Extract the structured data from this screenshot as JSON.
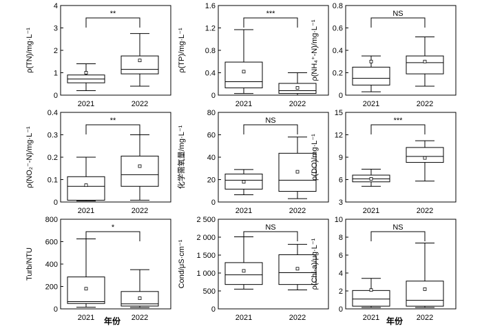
{
  "figure": {
    "x_title": "年份"
  },
  "chart_data": [
    {
      "type": "box",
      "ylabel": "ρ(TN)/mg·L⁻¹",
      "ylim": [
        0,
        4
      ],
      "yticks": [
        {
          "v": 0,
          "t": "0"
        },
        {
          "v": 1,
          "t": "1"
        },
        {
          "v": 2,
          "t": "2"
        },
        {
          "v": 3,
          "t": "3"
        },
        {
          "v": 4,
          "t": "4"
        }
      ],
      "categories": [
        "2021",
        "2022"
      ],
      "significance": "**",
      "boxes": [
        {
          "min": 0.2,
          "q1": 0.55,
          "median": 0.72,
          "q3": 0.9,
          "max": 1.4,
          "mean": 1.0
        },
        {
          "min": 0.4,
          "q1": 0.95,
          "median": 1.15,
          "q3": 1.75,
          "max": 2.75,
          "mean": 1.55
        }
      ]
    },
    {
      "type": "box",
      "ylabel": "ρ(TP)/mg·L⁻¹",
      "ylim": [
        0,
        1.6
      ],
      "yticks": [
        {
          "v": 0,
          "t": "0"
        },
        {
          "v": 0.4,
          "t": "0.4"
        },
        {
          "v": 0.8,
          "t": "0.8"
        },
        {
          "v": 1.2,
          "t": "1.2"
        },
        {
          "v": 1.6,
          "t": "1.6"
        }
      ],
      "categories": [
        "2021",
        "2022"
      ],
      "significance": "***",
      "boxes": [
        {
          "min": 0.03,
          "q1": 0.13,
          "median": 0.24,
          "q3": 0.59,
          "max": 1.17,
          "mean": 0.42
        },
        {
          "min": 0.0,
          "q1": 0.03,
          "median": 0.08,
          "q3": 0.21,
          "max": 0.4,
          "mean": 0.13
        }
      ]
    },
    {
      "type": "box",
      "ylabel": "ρ(NH₄⁺-N)/mg·L⁻¹",
      "ylim": [
        0,
        0.8
      ],
      "yticks": [
        {
          "v": 0,
          "t": "0"
        },
        {
          "v": 0.2,
          "t": "0.2"
        },
        {
          "v": 0.4,
          "t": "0.4"
        },
        {
          "v": 0.6,
          "t": "0.6"
        },
        {
          "v": 0.8,
          "t": "0.8"
        }
      ],
      "categories": [
        "2021",
        "2022"
      ],
      "significance": "NS",
      "boxes": [
        {
          "min": 0.03,
          "q1": 0.09,
          "median": 0.15,
          "q3": 0.25,
          "max": 0.35,
          "mean": 0.3
        },
        {
          "min": 0.08,
          "q1": 0.19,
          "median": 0.29,
          "q3": 0.35,
          "max": 0.52,
          "mean": 0.3
        }
      ]
    },
    {
      "type": "box",
      "ylabel": "ρ(NO₂⁻-N)/mg·L⁻¹",
      "ylim": [
        0,
        0.4
      ],
      "yticks": [
        {
          "v": 0,
          "t": "0"
        },
        {
          "v": 0.1,
          "t": "0.1"
        },
        {
          "v": 0.2,
          "t": "0.2"
        },
        {
          "v": 0.3,
          "t": "0.3"
        },
        {
          "v": 0.4,
          "t": "0.4"
        }
      ],
      "categories": [
        "2021",
        "2022"
      ],
      "significance": "**",
      "boxes": [
        {
          "min": 0.005,
          "q1": 0.008,
          "median": 0.07,
          "q3": 0.113,
          "max": 0.2,
          "mean": 0.075
        },
        {
          "min": 0.008,
          "q1": 0.07,
          "median": 0.122,
          "q3": 0.205,
          "max": 0.3,
          "mean": 0.16
        }
      ]
    },
    {
      "type": "box",
      "ylabel": "化学需氧量/mg·L⁻¹",
      "ylim": [
        0,
        80
      ],
      "yticks": [
        {
          "v": 0,
          "t": "0"
        },
        {
          "v": 20,
          "t": "20"
        },
        {
          "v": 40,
          "t": "40"
        },
        {
          "v": 60,
          "t": "60"
        },
        {
          "v": 80,
          "t": "80"
        }
      ],
      "categories": [
        "2021",
        "2022"
      ],
      "significance": "NS",
      "boxes": [
        {
          "min": 6.5,
          "q1": 11.5,
          "median": 19.5,
          "q3": 25,
          "max": 29,
          "mean": 18
        },
        {
          "min": 3,
          "q1": 9.5,
          "median": 19.5,
          "q3": 43.5,
          "max": 58,
          "mean": 27
        }
      ]
    },
    {
      "type": "box",
      "ylabel": "ρ(DO)/mg·L⁻¹",
      "ylim": [
        3,
        15
      ],
      "yticks": [
        {
          "v": 3,
          "t": "3"
        },
        {
          "v": 6,
          "t": "6"
        },
        {
          "v": 9,
          "t": "9"
        },
        {
          "v": 12,
          "t": "12"
        },
        {
          "v": 15,
          "t": "15"
        }
      ],
      "categories": [
        "2021",
        "2022"
      ],
      "significance": "***",
      "boxes": [
        {
          "min": 5.1,
          "q1": 5.7,
          "median": 6.1,
          "q3": 6.6,
          "max": 7.4,
          "mean": 6.1
        },
        {
          "min": 5.8,
          "q1": 8.3,
          "median": 9.1,
          "q3": 10.3,
          "max": 11.2,
          "mean": 8.9
        }
      ]
    },
    {
      "type": "box",
      "ylabel": "Turb/NTU",
      "ylim": [
        0,
        800
      ],
      "yticks": [
        {
          "v": 0,
          "t": "0"
        },
        {
          "v": 200,
          "t": "200"
        },
        {
          "v": 400,
          "t": "400"
        },
        {
          "v": 600,
          "t": "600"
        },
        {
          "v": 800,
          "t": "800"
        }
      ],
      "categories": [
        "2021",
        "2022"
      ],
      "significance": "*",
      "boxes": [
        {
          "min": 15,
          "q1": 48,
          "median": 65,
          "q3": 285,
          "max": 625,
          "mean": 180
        },
        {
          "min": 12,
          "q1": 25,
          "median": 45,
          "q3": 155,
          "max": 350,
          "mean": 95
        }
      ]
    },
    {
      "type": "box",
      "ylabel": "Cond/μS·cm⁻¹",
      "ylim": [
        0,
        2500
      ],
      "yticks": [
        {
          "v": 0,
          "t": "0"
        },
        {
          "v": 500,
          "t": "500"
        },
        {
          "v": 1000,
          "t": "1 000"
        },
        {
          "v": 1500,
          "t": "1 500"
        },
        {
          "v": 2000,
          "t": "2 000"
        },
        {
          "v": 2500,
          "t": "2 500"
        }
      ],
      "categories": [
        "2021",
        "2022"
      ],
      "significance": "NS",
      "boxes": [
        {
          "min": 550,
          "q1": 680,
          "median": 950,
          "q3": 1290,
          "max": 2010,
          "mean": 1060
        },
        {
          "min": 530,
          "q1": 680,
          "median": 1010,
          "q3": 1510,
          "max": 1800,
          "mean": 1120
        }
      ]
    },
    {
      "type": "box",
      "ylabel": "ρ(Chl-a)/μg·L⁻¹",
      "ylim": [
        0,
        10
      ],
      "yticks": [
        {
          "v": 0,
          "t": "0"
        },
        {
          "v": 2,
          "t": "2"
        },
        {
          "v": 4,
          "t": "4"
        },
        {
          "v": 6,
          "t": "6"
        },
        {
          "v": 8,
          "t": "8"
        },
        {
          "v": 10,
          "t": "10"
        }
      ],
      "categories": [
        "2021",
        "2022"
      ],
      "significance": "NS",
      "boxes": [
        {
          "min": 0.15,
          "q1": 0.3,
          "median": 1.1,
          "q3": 2.05,
          "max": 3.4,
          "mean": 2.1
        },
        {
          "min": 0.15,
          "q1": 0.3,
          "median": 0.95,
          "q3": 3.1,
          "max": 7.35,
          "mean": 2.2
        }
      ]
    }
  ]
}
